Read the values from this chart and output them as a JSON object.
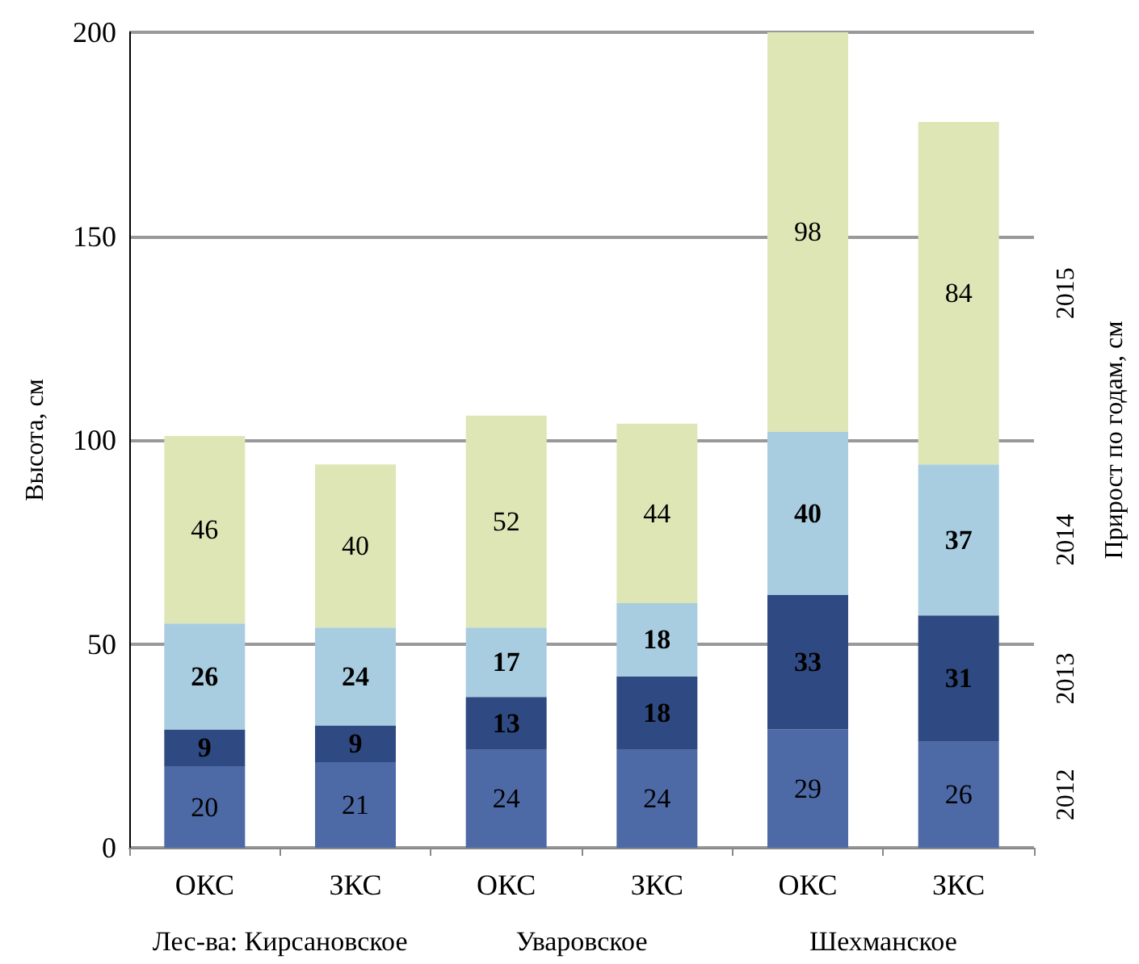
{
  "chart_data": {
    "type": "bar",
    "stacked": true,
    "ylabel": "Высота, см",
    "y2label": "Прирост по годам, см",
    "categories": [
      "ОКС",
      "ЗКС",
      "ОКС",
      "ЗКС",
      "ОКС",
      "ЗКС"
    ],
    "series": [
      {
        "name": "2012",
        "color": "#4d6aa6",
        "values": [
          20,
          21,
          24,
          24,
          29,
          26
        ]
      },
      {
        "name": "2013",
        "color": "#2f4a82",
        "values": [
          9,
          9,
          13,
          18,
          33,
          31
        ]
      },
      {
        "name": "2014",
        "color": "#a8cde0",
        "values": [
          26,
          24,
          17,
          18,
          40,
          37
        ]
      },
      {
        "name": "2015",
        "color": "#dfe6b6",
        "values": [
          46,
          40,
          52,
          44,
          98,
          84
        ]
      }
    ],
    "ylim": [
      0,
      200
    ],
    "yticks": [
      0,
      50,
      100,
      150,
      200
    ],
    "grid": "y",
    "legend": false,
    "data_labels": true,
    "annotations": [
      "Лес-ва: Кирсановское",
      "Уваровское",
      "Шехманское"
    ]
  }
}
